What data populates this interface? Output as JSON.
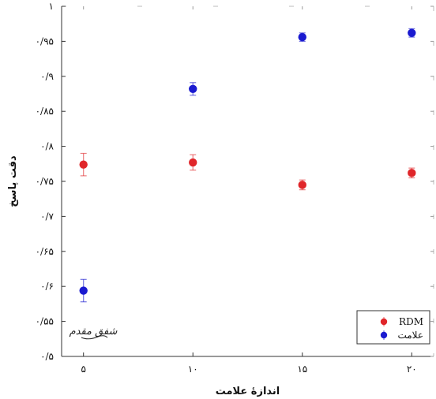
{
  "chart_data": {
    "type": "scatter",
    "xlabel": "اندازهٔ علامت",
    "ylabel": "دقت پاسخ",
    "xlim": [
      4,
      21
    ],
    "ylim": [
      0.5,
      1.0
    ],
    "xticks": [
      {
        "value": 5,
        "label": "۵"
      },
      {
        "value": 10,
        "label": "۱۰"
      },
      {
        "value": 15,
        "label": "۱۵"
      },
      {
        "value": 20,
        "label": "۲۰"
      }
    ],
    "yticks": [
      {
        "value": 0.5,
        "label": "۰/۵"
      },
      {
        "value": 0.55,
        "label": "۰/۵۵"
      },
      {
        "value": 0.6,
        "label": "۰/۶"
      },
      {
        "value": 0.65,
        "label": "۰/۶۵"
      },
      {
        "value": 0.7,
        "label": "۰/۷"
      },
      {
        "value": 0.75,
        "label": "۰/۷۵"
      },
      {
        "value": 0.8,
        "label": "۰/۸"
      },
      {
        "value": 0.85,
        "label": "۰/۸۵"
      },
      {
        "value": 0.9,
        "label": "۰/۹"
      },
      {
        "value": 0.95,
        "label": "۰/۹۵"
      },
      {
        "value": 1.0,
        "label": "۱"
      }
    ],
    "grid": false,
    "legend_position": "bottom-right",
    "series": [
      {
        "name": "RDM",
        "color": "#e0262a",
        "points": [
          {
            "x": 5,
            "y": 0.774,
            "err": 0.016
          },
          {
            "x": 10,
            "y": 0.777,
            "err": 0.011
          },
          {
            "x": 15,
            "y": 0.745,
            "err": 0.007
          },
          {
            "x": 20,
            "y": 0.762,
            "err": 0.007
          }
        ]
      },
      {
        "name": "علامت",
        "color": "#1a1ad0",
        "points": [
          {
            "x": 5,
            "y": 0.594,
            "err": 0.016
          },
          {
            "x": 10,
            "y": 0.882,
            "err": 0.009
          },
          {
            "x": 15,
            "y": 0.956,
            "err": 0.006
          },
          {
            "x": 20,
            "y": 0.962,
            "err": 0.006
          }
        ]
      }
    ]
  },
  "watermark": {
    "text": "شفق مقدم",
    "kind": "handwritten signature"
  }
}
